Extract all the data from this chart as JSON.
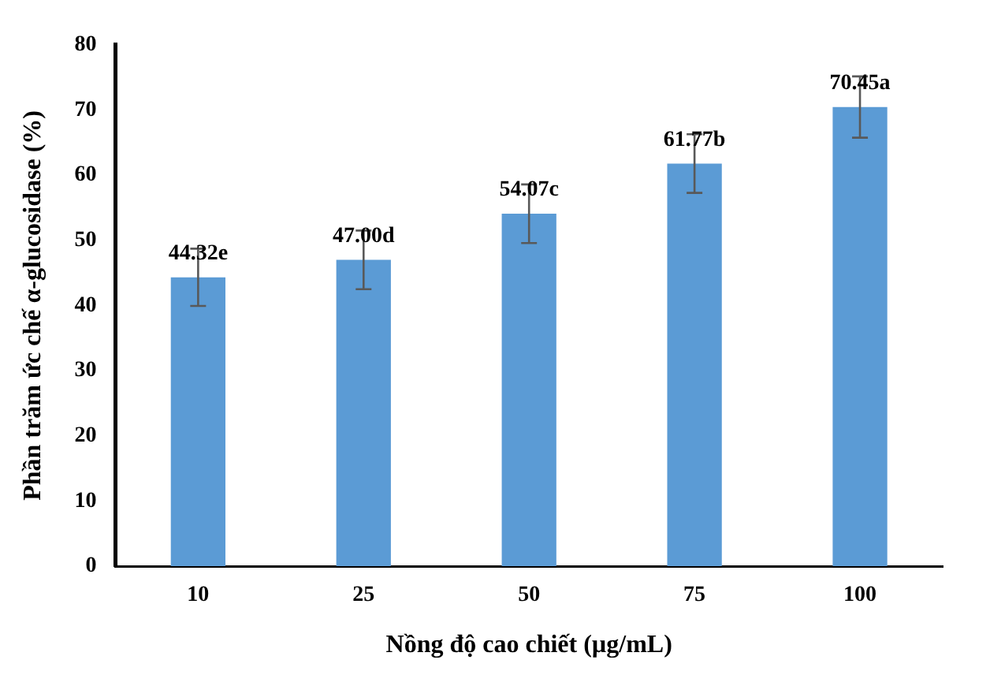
{
  "chart_data": {
    "type": "bar",
    "xlabel": "Nồng độ cao chiết (µg/mL)",
    "ylabel": "Phần trăm ức chế α-glucosidase (%)",
    "categories": [
      "10",
      "25",
      "50",
      "75",
      "100"
    ],
    "values": [
      44.32,
      47.0,
      54.07,
      61.77,
      70.45
    ],
    "errors": [
      4.4,
      4.5,
      4.5,
      4.5,
      4.7
    ],
    "value_labels": [
      "44.32e",
      "47.00d",
      "54.07c",
      "61.77b",
      "70.45a"
    ],
    "color": "#5b9bd5",
    "ylim": [
      0,
      80
    ],
    "yticks": [
      0,
      10,
      20,
      30,
      40,
      50,
      60,
      70,
      80
    ],
    "grid": false,
    "legend": false
  }
}
